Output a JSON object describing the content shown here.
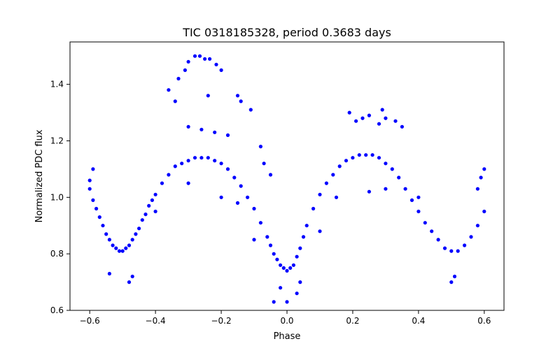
{
  "chart_data": {
    "type": "scatter",
    "title": "TIC 0318185328, period 0.3683 days",
    "xlabel": "Phase",
    "ylabel": "Normalized PDC flux",
    "xlim": [
      -0.66,
      0.66
    ],
    "ylim": [
      0.6,
      1.55
    ],
    "xticks": [
      -0.6,
      -0.4,
      -0.2,
      0.0,
      0.2,
      0.4,
      0.6
    ],
    "xtick_labels": [
      "−0.6",
      "−0.4",
      "−0.2",
      "0.0",
      "0.2",
      "0.4",
      "0.6"
    ],
    "yticks": [
      0.6,
      0.8,
      1.0,
      1.2,
      1.4
    ],
    "ytick_labels": [
      "0.6",
      "0.8",
      "1.0",
      "1.2",
      "1.4"
    ],
    "grid": false,
    "legend": "none",
    "marker_color": "#0000ff",
    "series": [
      {
        "points": [
          [
            -0.6,
            1.03
          ],
          [
            -0.59,
            0.99
          ],
          [
            -0.58,
            0.96
          ],
          [
            -0.57,
            0.93
          ],
          [
            -0.56,
            0.9
          ],
          [
            -0.55,
            0.87
          ],
          [
            -0.54,
            0.85
          ],
          [
            -0.53,
            0.83
          ],
          [
            -0.52,
            0.82
          ],
          [
            -0.51,
            0.81
          ],
          [
            -0.5,
            0.81
          ],
          [
            -0.49,
            0.82
          ],
          [
            -0.48,
            0.83
          ],
          [
            -0.47,
            0.85
          ],
          [
            -0.46,
            0.87
          ],
          [
            -0.45,
            0.89
          ],
          [
            -0.44,
            0.92
          ],
          [
            -0.43,
            0.94
          ],
          [
            -0.42,
            0.97
          ],
          [
            -0.41,
            0.99
          ],
          [
            -0.4,
            1.01
          ],
          [
            -0.38,
            1.05
          ],
          [
            -0.36,
            1.08
          ],
          [
            -0.34,
            1.11
          ],
          [
            -0.32,
            1.12
          ],
          [
            -0.3,
            1.13
          ],
          [
            -0.28,
            1.14
          ],
          [
            -0.26,
            1.14
          ],
          [
            -0.24,
            1.14
          ],
          [
            -0.22,
            1.13
          ],
          [
            -0.2,
            1.12
          ],
          [
            -0.18,
            1.1
          ],
          [
            -0.16,
            1.07
          ],
          [
            -0.14,
            1.04
          ],
          [
            -0.12,
            1.0
          ],
          [
            -0.1,
            0.96
          ],
          [
            -0.08,
            0.91
          ],
          [
            -0.06,
            0.86
          ],
          [
            -0.05,
            0.83
          ],
          [
            -0.04,
            0.8
          ],
          [
            -0.03,
            0.78
          ],
          [
            -0.02,
            0.76
          ],
          [
            -0.01,
            0.75
          ],
          [
            0.0,
            0.74
          ],
          [
            0.01,
            0.75
          ],
          [
            0.02,
            0.76
          ],
          [
            0.03,
            0.79
          ],
          [
            0.04,
            0.82
          ],
          [
            0.05,
            0.86
          ],
          [
            0.06,
            0.9
          ],
          [
            0.08,
            0.96
          ],
          [
            0.1,
            1.01
          ],
          [
            0.12,
            1.05
          ],
          [
            0.14,
            1.08
          ],
          [
            0.16,
            1.11
          ],
          [
            0.18,
            1.13
          ],
          [
            0.2,
            1.14
          ],
          [
            0.22,
            1.15
          ],
          [
            0.24,
            1.15
          ],
          [
            0.26,
            1.15
          ],
          [
            0.28,
            1.14
          ],
          [
            0.3,
            1.12
          ],
          [
            0.32,
            1.1
          ],
          [
            0.34,
            1.07
          ],
          [
            0.36,
            1.03
          ],
          [
            0.38,
            0.99
          ],
          [
            0.4,
            0.95
          ],
          [
            0.42,
            0.91
          ],
          [
            0.44,
            0.88
          ],
          [
            0.46,
            0.85
          ],
          [
            0.48,
            0.82
          ],
          [
            0.5,
            0.81
          ],
          [
            0.52,
            0.81
          ],
          [
            0.54,
            0.83
          ],
          [
            0.56,
            0.86
          ],
          [
            0.58,
            0.9
          ],
          [
            0.6,
            0.95
          ],
          [
            -0.28,
            1.5
          ],
          [
            -0.265,
            1.5
          ],
          [
            -0.25,
            1.49
          ],
          [
            -0.235,
            1.49
          ],
          [
            -0.3,
            1.48
          ],
          [
            -0.215,
            1.47
          ],
          [
            -0.31,
            1.45
          ],
          [
            -0.2,
            1.45
          ],
          [
            -0.33,
            1.42
          ],
          [
            -0.15,
            1.36
          ],
          [
            -0.36,
            1.38
          ],
          [
            -0.24,
            1.36
          ],
          [
            -0.34,
            1.34
          ],
          [
            -0.14,
            1.34
          ],
          [
            -0.11,
            1.31
          ],
          [
            -0.08,
            1.18
          ],
          [
            -0.07,
            1.12
          ],
          [
            -0.05,
            1.08
          ],
          [
            0.29,
            1.31
          ],
          [
            0.19,
            1.3
          ],
          [
            0.25,
            1.29
          ],
          [
            0.23,
            1.28
          ],
          [
            0.3,
            1.28
          ],
          [
            0.21,
            1.27
          ],
          [
            0.33,
            1.27
          ],
          [
            0.28,
            1.26
          ],
          [
            0.35,
            1.25
          ],
          [
            -0.3,
            1.25
          ],
          [
            -0.26,
            1.24
          ],
          [
            -0.22,
            1.23
          ],
          [
            -0.18,
            1.22
          ],
          [
            0.0,
            0.63
          ],
          [
            -0.04,
            0.63
          ],
          [
            0.03,
            0.66
          ],
          [
            -0.02,
            0.68
          ],
          [
            0.04,
            0.7
          ],
          [
            -0.48,
            0.7
          ],
          [
            -0.47,
            0.72
          ],
          [
            0.5,
            0.7
          ],
          [
            0.51,
            0.72
          ],
          [
            -0.54,
            0.73
          ],
          [
            -0.6,
            1.06
          ],
          [
            -0.59,
            1.1
          ],
          [
            0.59,
            1.07
          ],
          [
            0.6,
            1.1
          ],
          [
            0.58,
            1.03
          ],
          [
            -0.3,
            1.05
          ],
          [
            -0.2,
            1.0
          ],
          [
            0.25,
            1.02
          ],
          [
            0.3,
            1.03
          ],
          [
            -0.1,
            0.85
          ],
          [
            0.1,
            0.88
          ],
          [
            0.4,
            1.0
          ],
          [
            -0.4,
            0.95
          ],
          [
            0.15,
            1.0
          ],
          [
            -0.15,
            0.98
          ]
        ]
      }
    ]
  }
}
